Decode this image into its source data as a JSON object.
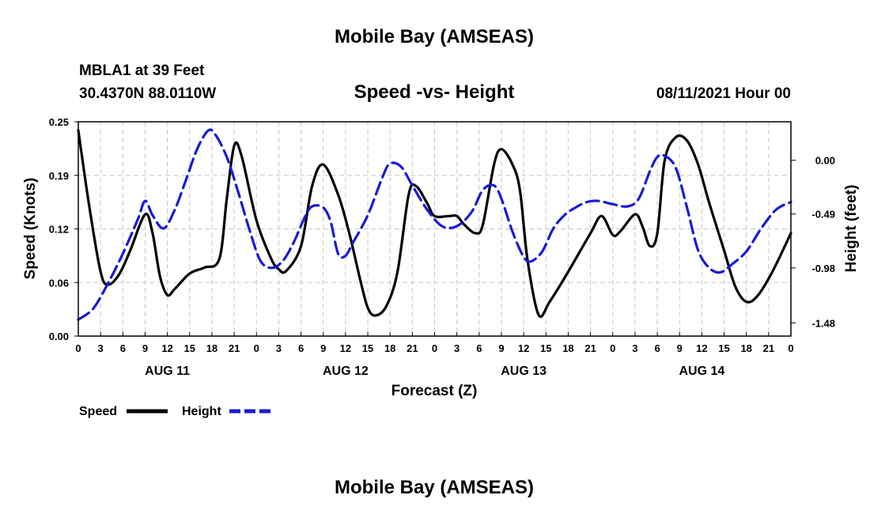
{
  "page": {
    "top_title": "Mobile Bay (AMSEAS)",
    "bottom_title": "Mobile Bay (AMSEAS)",
    "station_line1": "MBLA1 at 39 Feet",
    "station_line2": "30.4370N  88.0110W",
    "issued": "08/11/2021 Hour 00"
  },
  "colors": {
    "speed": "#000000",
    "height": "#1a1ad6",
    "grid": "#c8c8c8"
  },
  "chart_data": {
    "type": "line",
    "title": "Speed -vs- Height",
    "xlabel": "Forecast (Z)",
    "ylabel_left": "Speed (Knots)",
    "ylabel_right": "Height (feet)",
    "x_range_hours": [
      0,
      96
    ],
    "ylim_left": [
      0,
      0.25
    ],
    "ylim_right": [
      -1.6,
      0.35
    ],
    "y_ticks_left": [
      {
        "value": 0.0,
        "label": "0.00"
      },
      {
        "value": 0.0625,
        "label": "0.06"
      },
      {
        "value": 0.125,
        "label": "0.12"
      },
      {
        "value": 0.1875,
        "label": "0.19"
      },
      {
        "value": 0.25,
        "label": "0.25"
      }
    ],
    "y_ticks_right": [
      {
        "value": -1.48,
        "label": "-1.48"
      },
      {
        "value": -0.98,
        "label": "-0.98"
      },
      {
        "value": -0.49,
        "label": "-0.49"
      },
      {
        "value": 0.0,
        "label": "0.00"
      }
    ],
    "x_tick_labels": [
      "0",
      "3",
      "6",
      "9",
      "12",
      "15",
      "18",
      "21",
      "0",
      "3",
      "6",
      "9",
      "12",
      "15",
      "18",
      "21",
      "0",
      "3",
      "6",
      "9",
      "12",
      "15",
      "18",
      "21",
      "0",
      "3",
      "6",
      "9",
      "12",
      "15",
      "18",
      "21",
      "0"
    ],
    "day_labels": [
      {
        "hour": 12,
        "label": "AUG 11"
      },
      {
        "hour": 36,
        "label": "AUG 12"
      },
      {
        "hour": 60,
        "label": "AUG 13"
      },
      {
        "hour": 84,
        "label": "AUG 14"
      }
    ],
    "legend": [
      {
        "name": "Speed",
        "style": "solid"
      },
      {
        "name": "Height",
        "style": "dashed"
      }
    ],
    "series": [
      {
        "name": "Speed",
        "axis": "left",
        "units": "knots",
        "points": [
          [
            0,
            0.24
          ],
          [
            1.5,
            0.15
          ],
          [
            3,
            0.075
          ],
          [
            4,
            0.06
          ],
          [
            5.5,
            0.072
          ],
          [
            7,
            0.1
          ],
          [
            9,
            0.142
          ],
          [
            10,
            0.12
          ],
          [
            11,
            0.07
          ],
          [
            12,
            0.048
          ],
          [
            13,
            0.055
          ],
          [
            15,
            0.073
          ],
          [
            17,
            0.08
          ],
          [
            19,
            0.09
          ],
          [
            20,
            0.16
          ],
          [
            21,
            0.222
          ],
          [
            22,
            0.21
          ],
          [
            24,
            0.135
          ],
          [
            26,
            0.09
          ],
          [
            27,
            0.078
          ],
          [
            28,
            0.076
          ],
          [
            30,
            0.105
          ],
          [
            31.5,
            0.175
          ],
          [
            33,
            0.2
          ],
          [
            35,
            0.165
          ],
          [
            36.5,
            0.12
          ],
          [
            38,
            0.065
          ],
          [
            39,
            0.033
          ],
          [
            40,
            0.024
          ],
          [
            41.5,
            0.035
          ],
          [
            43,
            0.075
          ],
          [
            44.5,
            0.165
          ],
          [
            45.5,
            0.175
          ],
          [
            47,
            0.155
          ],
          [
            48,
            0.14
          ],
          [
            50,
            0.14
          ],
          [
            51,
            0.14
          ],
          [
            52,
            0.13
          ],
          [
            53.5,
            0.12
          ],
          [
            54.5,
            0.13
          ],
          [
            56,
            0.2
          ],
          [
            57,
            0.218
          ],
          [
            58.5,
            0.2
          ],
          [
            59.5,
            0.17
          ],
          [
            60.5,
            0.09
          ],
          [
            62,
            0.025
          ],
          [
            63.5,
            0.04
          ],
          [
            66,
            0.075
          ],
          [
            69,
            0.12
          ],
          [
            70.5,
            0.14
          ],
          [
            72,
            0.118
          ],
          [
            73,
            0.122
          ],
          [
            75,
            0.142
          ],
          [
            76,
            0.128
          ],
          [
            77,
            0.105
          ],
          [
            78,
            0.12
          ],
          [
            79,
            0.205
          ],
          [
            80.5,
            0.232
          ],
          [
            82,
            0.228
          ],
          [
            83.5,
            0.2
          ],
          [
            85,
            0.155
          ],
          [
            87,
            0.1
          ],
          [
            88.5,
            0.058
          ],
          [
            90,
            0.04
          ],
          [
            91.5,
            0.047
          ],
          [
            93.5,
            0.075
          ],
          [
            96,
            0.12
          ]
        ]
      },
      {
        "name": "Height",
        "axis": "right",
        "units": "feet",
        "points": [
          [
            0,
            -1.45
          ],
          [
            2,
            -1.35
          ],
          [
            4,
            -1.12
          ],
          [
            6,
            -0.85
          ],
          [
            8,
            -0.54
          ],
          [
            9,
            -0.37
          ],
          [
            10,
            -0.5
          ],
          [
            11.5,
            -0.62
          ],
          [
            13,
            -0.45
          ],
          [
            14.5,
            -0.18
          ],
          [
            16,
            0.1
          ],
          [
            17.5,
            0.27
          ],
          [
            18.5,
            0.23
          ],
          [
            20,
            0.03
          ],
          [
            21.5,
            -0.28
          ],
          [
            23,
            -0.62
          ],
          [
            24.5,
            -0.91
          ],
          [
            26,
            -0.98
          ],
          [
            27.5,
            -0.92
          ],
          [
            29,
            -0.75
          ],
          [
            30.5,
            -0.52
          ],
          [
            31.5,
            -0.42
          ],
          [
            33,
            -0.43
          ],
          [
            34,
            -0.56
          ],
          [
            35,
            -0.85
          ],
          [
            36,
            -0.87
          ],
          [
            37,
            -0.75
          ],
          [
            39,
            -0.5
          ],
          [
            41,
            -0.15
          ],
          [
            42,
            -0.03
          ],
          [
            43.5,
            -0.06
          ],
          [
            45,
            -0.23
          ],
          [
            47,
            -0.45
          ],
          [
            49,
            -0.6
          ],
          [
            51,
            -0.6
          ],
          [
            53,
            -0.47
          ],
          [
            54.5,
            -0.27
          ],
          [
            56,
            -0.23
          ],
          [
            57,
            -0.35
          ],
          [
            58.5,
            -0.65
          ],
          [
            60,
            -0.88
          ],
          [
            61,
            -0.92
          ],
          [
            62.5,
            -0.83
          ],
          [
            64,
            -0.62
          ],
          [
            65.5,
            -0.5
          ],
          [
            67,
            -0.43
          ],
          [
            68.5,
            -0.38
          ],
          [
            70,
            -0.37
          ],
          [
            72,
            -0.4
          ],
          [
            74,
            -0.42
          ],
          [
            75.5,
            -0.35
          ],
          [
            77,
            -0.1
          ],
          [
            78,
            0.03
          ],
          [
            79,
            0.04
          ],
          [
            80.5,
            -0.07
          ],
          [
            82,
            -0.43
          ],
          [
            83.5,
            -0.82
          ],
          [
            85,
            -0.98
          ],
          [
            86.5,
            -1.02
          ],
          [
            88,
            -0.95
          ],
          [
            90,
            -0.83
          ],
          [
            92,
            -0.62
          ],
          [
            94,
            -0.45
          ],
          [
            96,
            -0.38
          ]
        ]
      }
    ]
  }
}
